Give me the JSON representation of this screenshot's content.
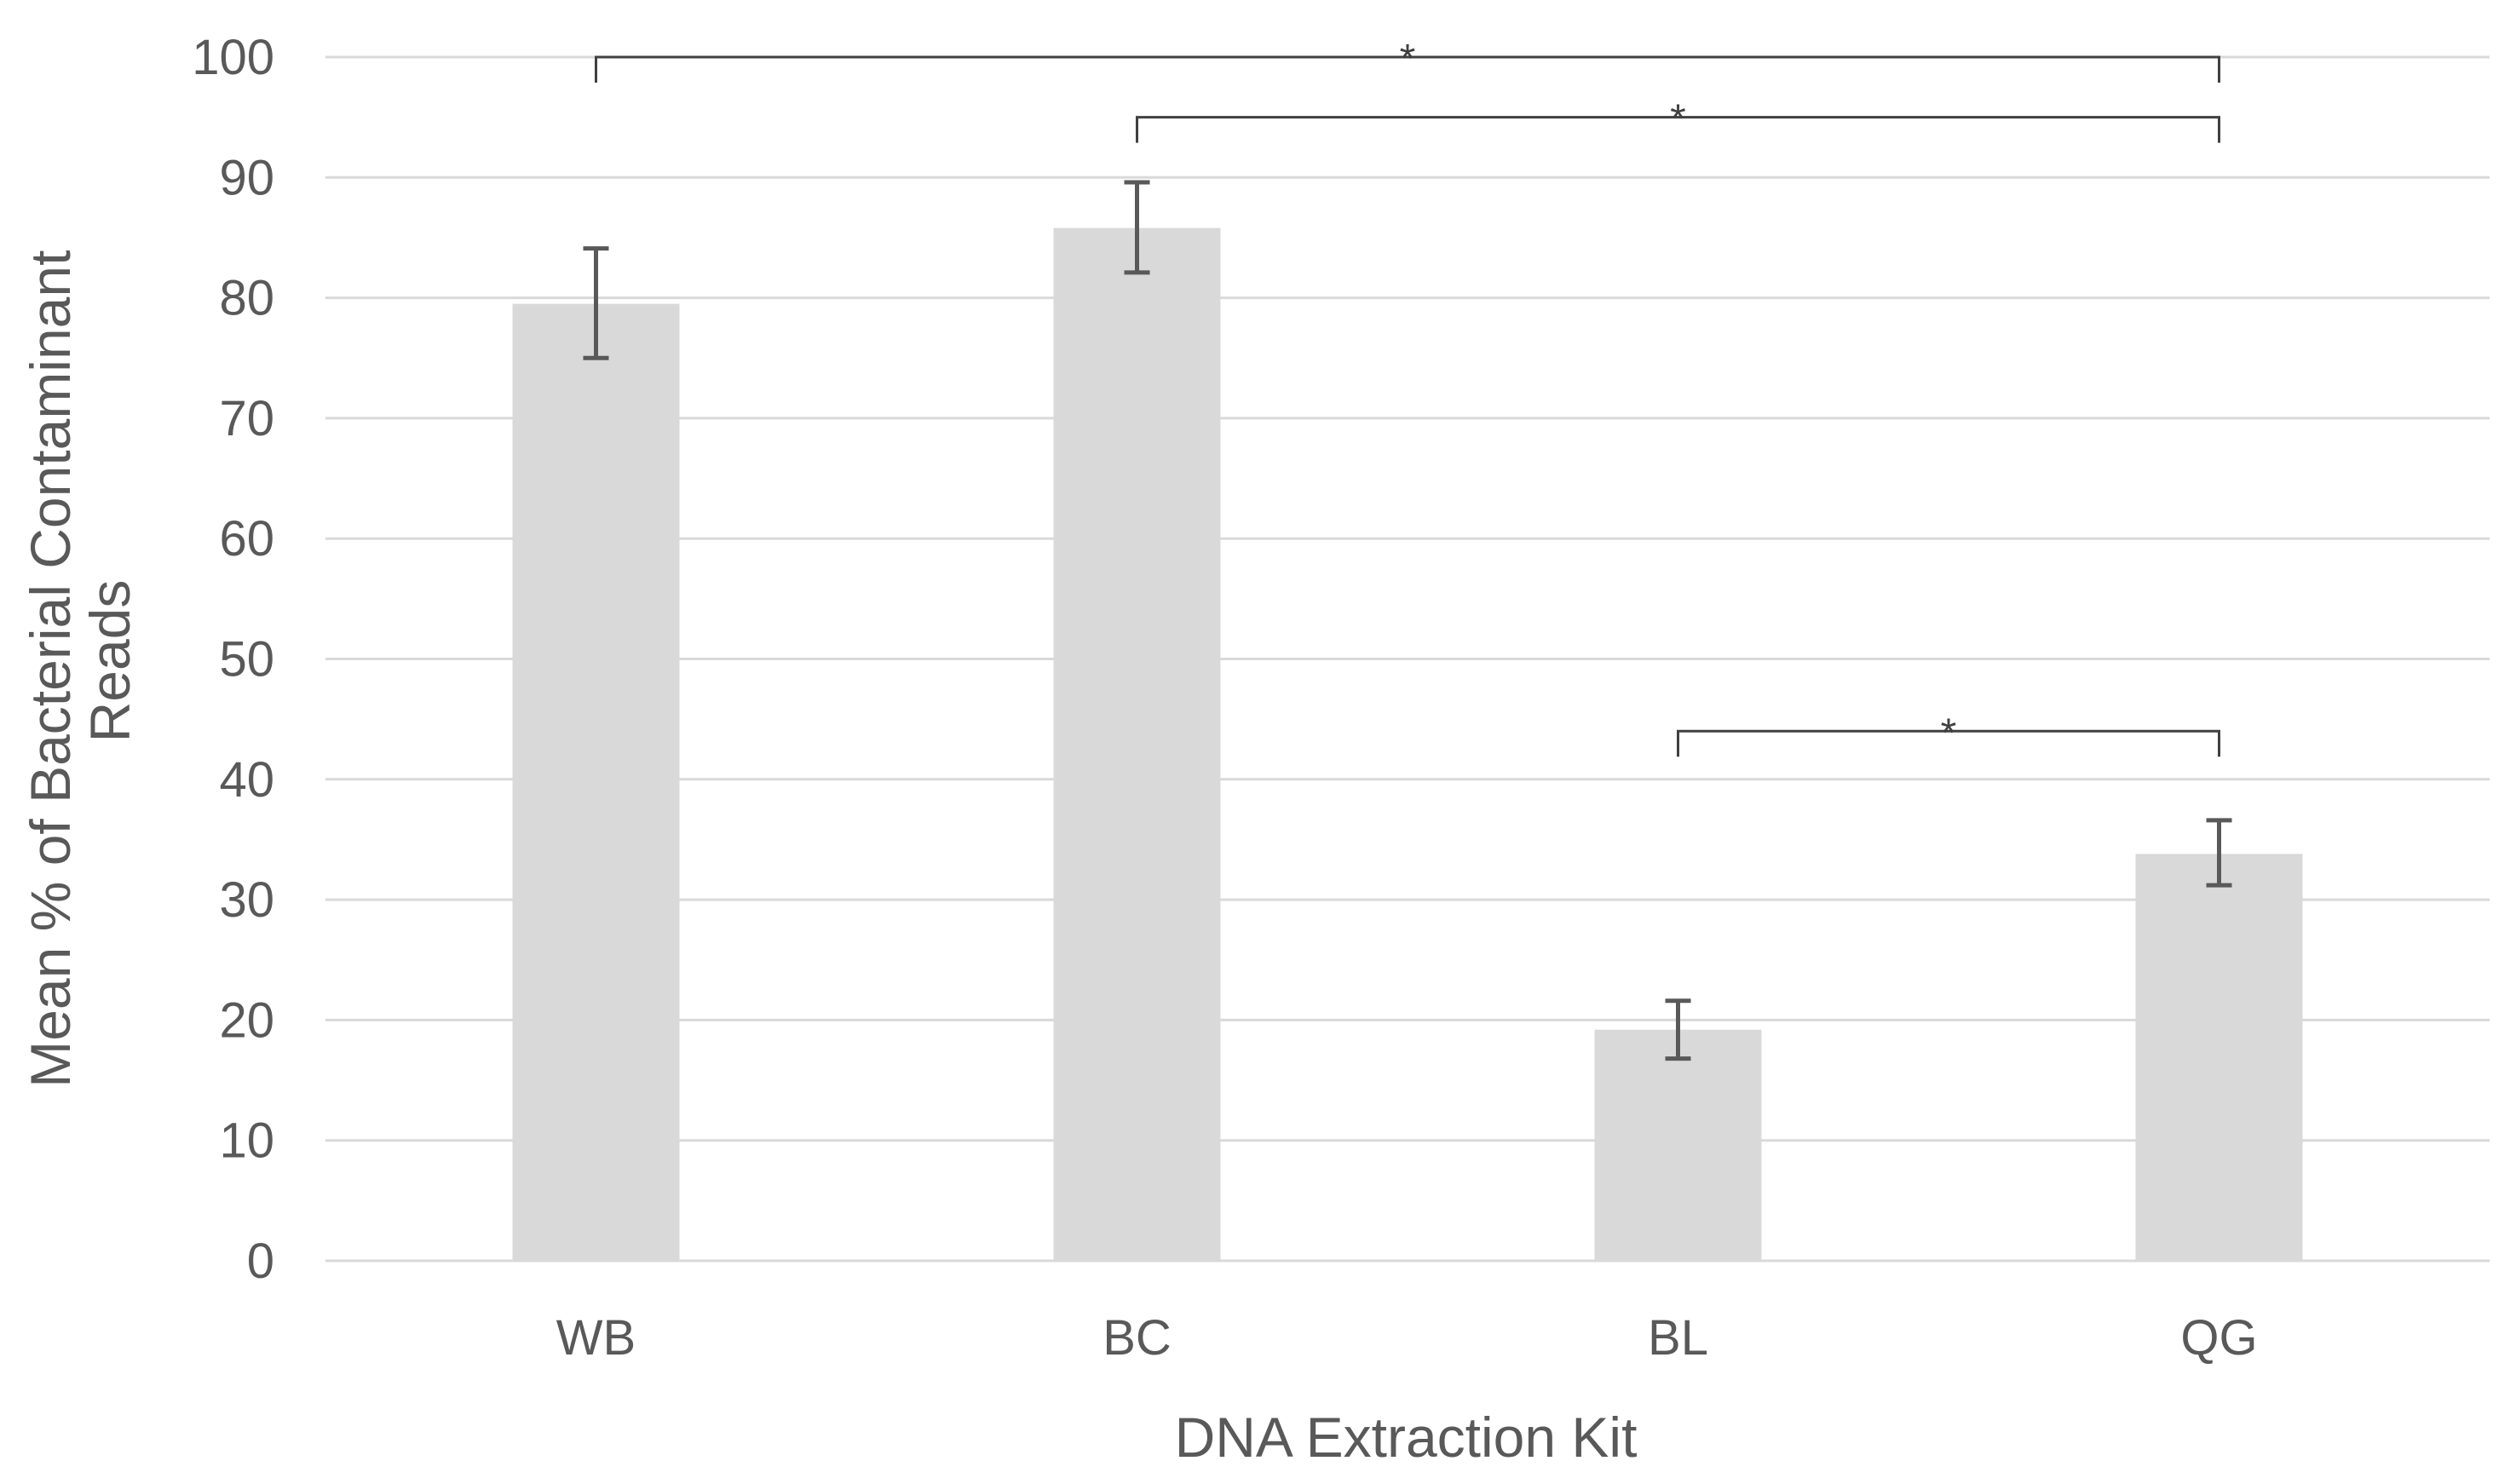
{
  "chart_data": {
    "type": "bar",
    "title": "",
    "xlabel": "DNA  Extraction Kit",
    "ylabel_lines": [
      "Mean % of Bacterial Contaminant",
      "Reads"
    ],
    "categories": [
      "WB",
      "BC",
      "BL",
      "QG"
    ],
    "values": [
      79.5,
      85.8,
      19.2,
      33.8
    ],
    "error_low": [
      75.0,
      82.1,
      16.8,
      31.2
    ],
    "error_high": [
      84.1,
      89.6,
      21.6,
      36.6
    ],
    "ylim": [
      0,
      100
    ],
    "yticks": [
      0,
      10,
      20,
      30,
      40,
      50,
      60,
      70,
      80,
      90,
      100
    ],
    "grid": true,
    "bar_color": "#d9d9d9",
    "significance": [
      {
        "from": "WB",
        "to": "QG",
        "y": 100,
        "label": "*"
      },
      {
        "from": "BC",
        "to": "QG",
        "y": 95,
        "label": "*"
      },
      {
        "from": "BL",
        "to": "QG",
        "y": 44,
        "label": "*"
      }
    ]
  }
}
